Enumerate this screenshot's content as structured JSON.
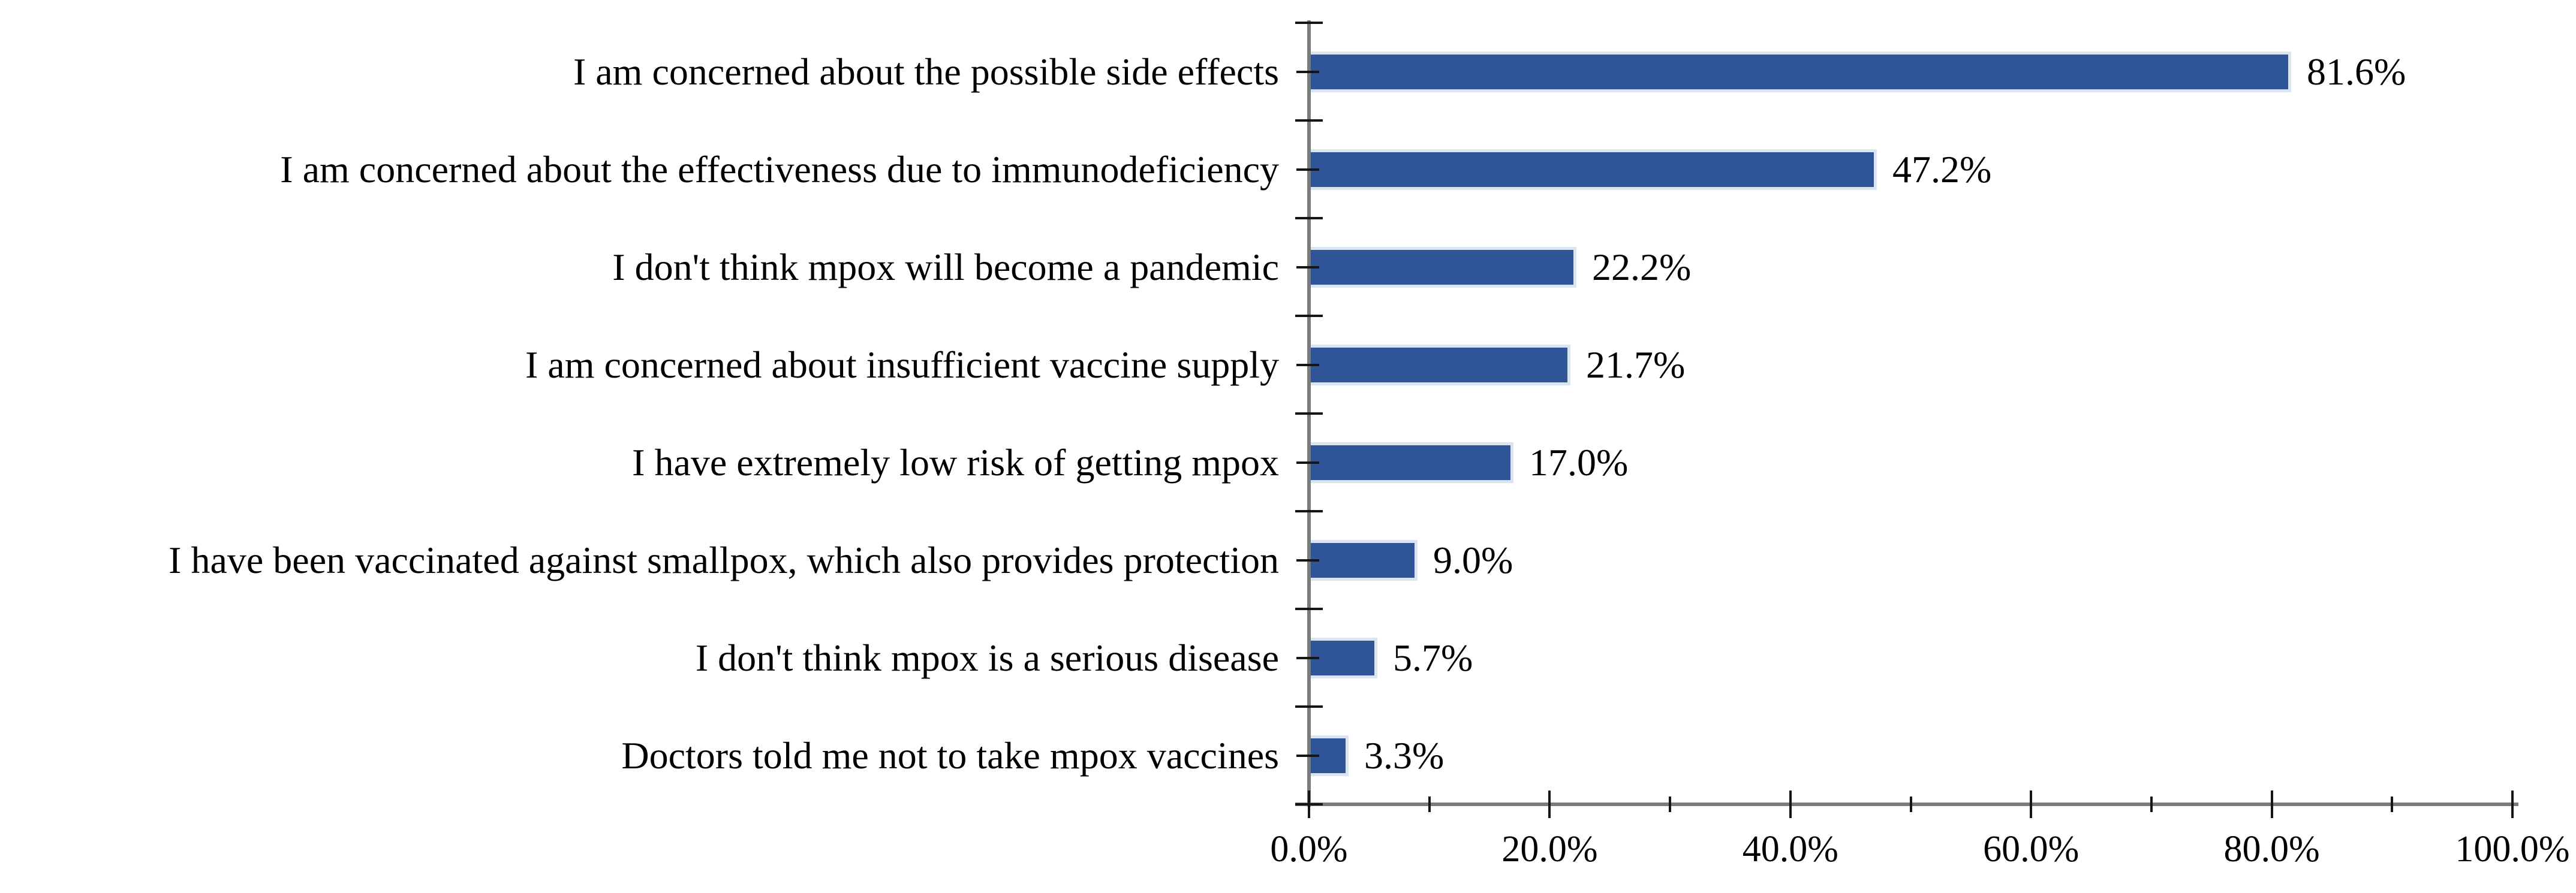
{
  "chart_data": {
    "type": "bar",
    "orientation": "horizontal",
    "title": "",
    "xlabel": "",
    "ylabel": "",
    "categories": [
      "I am concerned about the possible side effects",
      "I am concerned about the effectiveness due to immunodeficiency",
      "I don't think mpox will become a pandemic",
      "I am concerned about insufficient vaccine supply",
      "I have extremely low risk of getting mpox",
      "I have been vaccinated against smallpox, which also provides protection",
      "I don't think mpox is a serious disease",
      "Doctors told me not to take mpox vaccines"
    ],
    "values": [
      81.6,
      47.2,
      22.2,
      21.7,
      17.0,
      9.0,
      5.7,
      3.3
    ],
    "value_labels": [
      "81.6%",
      "47.2%",
      "22.2%",
      "21.7%",
      "17.0%",
      "9.0%",
      "5.7%",
      "3.3%"
    ],
    "x_tick_labels": [
      "0.0%",
      "20.0%",
      "40.0%",
      "60.0%",
      "80.0%",
      "100.0%"
    ],
    "xlim": [
      0,
      100
    ],
    "x_major_step": 20,
    "x_minor_step": 10,
    "grid": "off",
    "legend": "none",
    "bar_color": "#2F5597",
    "bar_edge_color": "#DBE5F1",
    "axis_line_color": "#7A7A7A",
    "tick_color": "#161616"
  }
}
